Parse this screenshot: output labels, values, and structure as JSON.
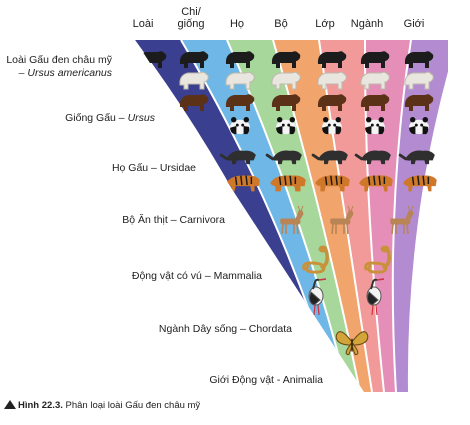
{
  "headers": [
    "Loài",
    "Chi/\ngiống",
    "Họ",
    "Bộ",
    "Lớp",
    "Ngành",
    "Giới"
  ],
  "levels": [
    {
      "main": "Loài Gấu đen châu mỹ",
      "sub": "– Ursus americanus"
    },
    {
      "main": "Giống Gấu – ",
      "italic": "Ursus"
    },
    {
      "main": "Họ Gấu – Ursidae"
    },
    {
      "main": "Bộ Ăn thịt – Carnivora"
    },
    {
      "main": "Động vật có vú – Mammalia"
    },
    {
      "main": "Ngành Dây sống – Chordata"
    },
    {
      "main": "Giới Động vật - Animalia"
    }
  ],
  "caption": {
    "figure": "Hình 22.3.",
    "text": " Phân loại loài Gấu đen châu mỹ"
  },
  "colors": {
    "bands": [
      "#3b3f8f",
      "#6fb7e6",
      "#a7d79a",
      "#f2a46d",
      "#f29a9a",
      "#e58fb8",
      "#b28bd0"
    ],
    "black_bear": "#1c1c1c",
    "polar_bear": "#e9e6df",
    "brown_bear": "#5b3218",
    "panda": "#111111",
    "raccoon": "#2f2f2f",
    "tiger": "#d0782a",
    "deer": "#b98456",
    "snake": "#c8913a",
    "stork": "#f2f2f2",
    "butterfly": "#d3a43a"
  },
  "icons": [
    "black-bear-icon",
    "polar-bear-icon",
    "brown-bear-icon",
    "panda-icon",
    "raccoon-icon",
    "tiger-icon",
    "deer-icon",
    "snake-icon",
    "stork-icon",
    "butterfly-icon"
  ]
}
